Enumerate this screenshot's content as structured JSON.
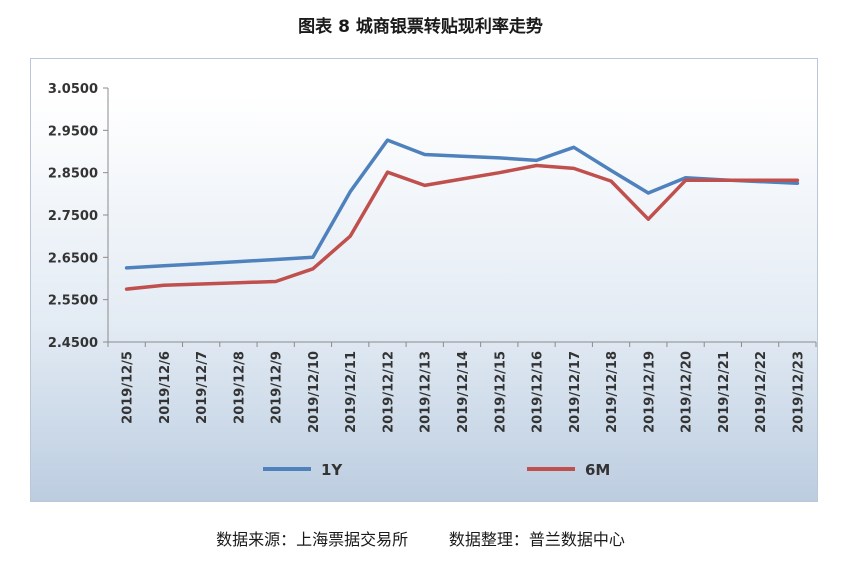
{
  "title": "图表 8  城商银票转贴现利率走势",
  "source_text": "数据来源：上海票据交易所        数据整理：普兰数据中心",
  "chart_data": {
    "type": "line",
    "title": "图表 8  城商银票转贴现利率走势",
    "xlabel": "",
    "ylabel": "",
    "categories": [
      "2019/12/5",
      "2019/12/6",
      "2019/12/7",
      "2019/12/8",
      "2019/12/9",
      "2019/12/10",
      "2019/12/11",
      "2019/12/12",
      "2019/12/13",
      "2019/12/14",
      "2019/12/15",
      "2019/12/16",
      "2019/12/17",
      "2019/12/18",
      "2019/12/19",
      "2019/12/20",
      "2019/12/21",
      "2019/12/22",
      "2019/12/23"
    ],
    "yticks": [
      "2.4500",
      "2.5500",
      "2.6500",
      "2.7500",
      "2.8500",
      "2.9500",
      "3.0500"
    ],
    "ylim": [
      2.45,
      3.05
    ],
    "grid": false,
    "legend_position": "bottom",
    "series": [
      {
        "name": "1Y",
        "color": "#4f81bd",
        "values": [
          2.625,
          2.63,
          2.635,
          2.64,
          2.645,
          2.65,
          2.805,
          2.927,
          2.893,
          2.889,
          2.885,
          2.879,
          2.91,
          2.855,
          2.802,
          2.838,
          2.833,
          2.829,
          2.825
        ]
      },
      {
        "name": "6M",
        "color": "#c0504d",
        "values": [
          2.575,
          2.584,
          2.587,
          2.59,
          2.593,
          2.623,
          2.7,
          2.851,
          2.82,
          2.835,
          2.85,
          2.867,
          2.86,
          2.83,
          2.74,
          2.832,
          2.832,
          2.832,
          2.832
        ]
      }
    ]
  }
}
